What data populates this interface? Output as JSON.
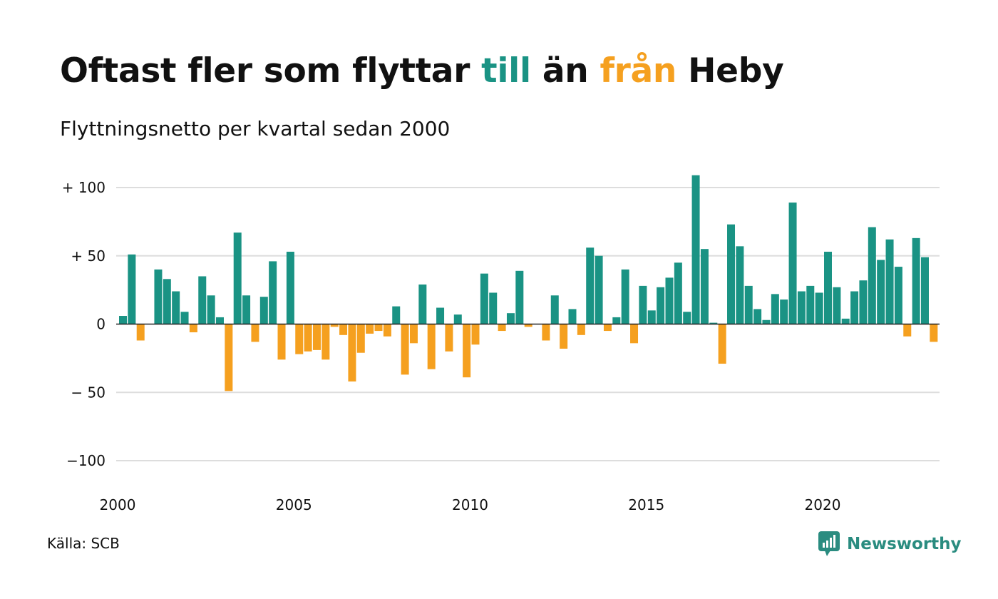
{
  "title": {
    "prefix": "Oftast fler som flyttar ",
    "till": "till",
    "middle": " än ",
    "fran": "från",
    "suffix": " Heby"
  },
  "subtitle": "Flyttningsnetto per kvartal sedan 2000",
  "source": "Källa: SCB",
  "logo_text": "Newsworthy",
  "colors": {
    "positive": "#1a9384",
    "negative": "#f5a01f",
    "logo": "#2a8c80",
    "grid": "#dddddd",
    "text": "#111111"
  },
  "chart_data": {
    "type": "bar",
    "start": {
      "year": 2000,
      "quarter": 1
    },
    "x_ticks": [
      "2000",
      "2005",
      "2010",
      "2015",
      "2020"
    ],
    "y_ticks": [
      {
        "value": 100,
        "label": "+ 100"
      },
      {
        "value": 50,
        "label": "+  50"
      },
      {
        "value": 0,
        "label": "0"
      },
      {
        "value": -50,
        "label": "− 50"
      },
      {
        "value": -100,
        "label": "−100"
      }
    ],
    "ylim": [
      -100,
      100
    ],
    "grid": true,
    "values": [
      6,
      51,
      -12,
      0,
      40,
      33,
      24,
      9,
      -6,
      35,
      21,
      5,
      -49,
      67,
      21,
      -13,
      20,
      46,
      -26,
      53,
      -22,
      -20,
      -19,
      -26,
      -2,
      -8,
      -42,
      -21,
      -7,
      -5,
      -9,
      13,
      -37,
      -14,
      29,
      -33,
      12,
      -20,
      7,
      -39,
      -15,
      37,
      23,
      -5,
      8,
      39,
      -2,
      0,
      -12,
      21,
      -18,
      11,
      -8,
      56,
      50,
      -5,
      5,
      40,
      -14,
      28,
      10,
      27,
      34,
      45,
      9,
      109,
      55,
      1,
      -29,
      73,
      57,
      28,
      11,
      3,
      22,
      18,
      89,
      24,
      28,
      23,
      53,
      27,
      4,
      24,
      32,
      71,
      47,
      62,
      42,
      -9,
      63,
      49,
      -13
    ]
  }
}
